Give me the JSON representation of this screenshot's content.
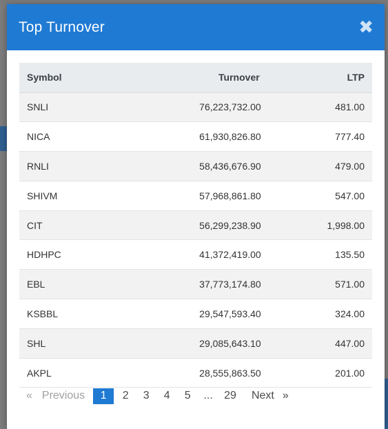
{
  "modal": {
    "title": "Top Turnover",
    "close_label": "✖"
  },
  "table": {
    "headers": {
      "symbol": "Symbol",
      "turnover": "Turnover",
      "ltp": "LTP"
    },
    "rows": [
      {
        "symbol": "SNLI",
        "turnover": "76,223,732.00",
        "ltp": "481.00"
      },
      {
        "symbol": "NICA",
        "turnover": "61,930,826.80",
        "ltp": "777.40"
      },
      {
        "symbol": "RNLI",
        "turnover": "58,436,676.90",
        "ltp": "479.00"
      },
      {
        "symbol": "SHIVM",
        "turnover": "57,968,861.80",
        "ltp": "547.00"
      },
      {
        "symbol": "CIT",
        "turnover": "56,299,238.90",
        "ltp": "1,998.00"
      },
      {
        "symbol": "HDHPC",
        "turnover": "41,372,419.00",
        "ltp": "135.50"
      },
      {
        "symbol": "EBL",
        "turnover": "37,773,174.80",
        "ltp": "571.00"
      },
      {
        "symbol": "KSBBL",
        "turnover": "29,547,593.40",
        "ltp": "324.00"
      },
      {
        "symbol": "SHL",
        "turnover": "29,085,643.10",
        "ltp": "447.00"
      },
      {
        "symbol": "AKPL",
        "turnover": "28,555,863.50",
        "ltp": "201.00"
      }
    ]
  },
  "pagination": {
    "prev_arrow": "«",
    "prev_label": "Previous",
    "pages": [
      "1",
      "2",
      "3",
      "4",
      "5",
      "...",
      "29"
    ],
    "active_page": "1",
    "next_label": "Next",
    "next_arrow": "»"
  },
  "colors": {
    "accent": "#1f7ad3",
    "overlay": "#7d7d7d"
  }
}
